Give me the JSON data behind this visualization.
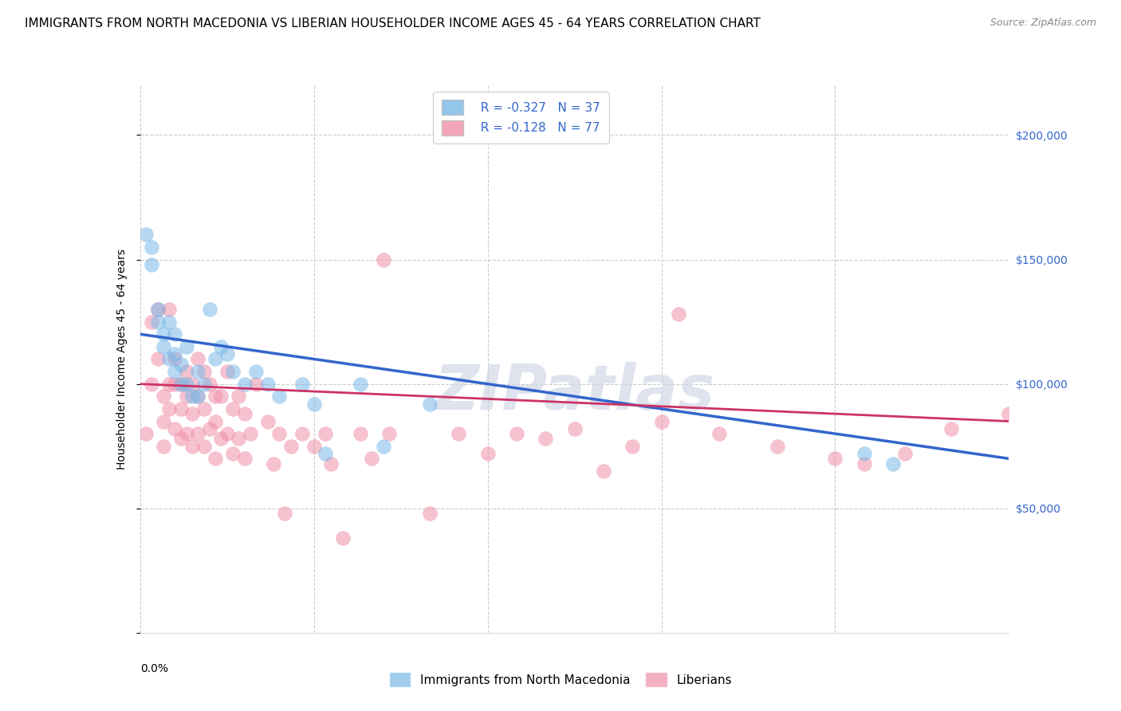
{
  "title": "IMMIGRANTS FROM NORTH MACEDONIA VS LIBERIAN HOUSEHOLDER INCOME AGES 45 - 64 YEARS CORRELATION CHART",
  "source": "Source: ZipAtlas.com",
  "ylabel": "Householder Income Ages 45 - 64 years",
  "xlim": [
    0.0,
    0.15
  ],
  "ylim": [
    0,
    220000
  ],
  "yticks": [
    0,
    50000,
    100000,
    150000,
    200000
  ],
  "xticks": [
    0.0,
    0.03,
    0.06,
    0.09,
    0.12,
    0.15
  ],
  "series1_label": "Immigrants from North Macedonia",
  "series2_label": "Liberians",
  "series1_color": "#7ab8e8",
  "series2_color": "#f090a8",
  "line1_color": "#3366cc",
  "line2_color": "#cc3366",
  "watermark": "ZIPatlas",
  "background_color": "#ffffff",
  "grid_color": "#cccccc",
  "title_fontsize": 11,
  "source_fontsize": 9,
  "legend_r1": "R = -0.327",
  "legend_n1": "N = 37",
  "legend_r2": "R = -0.128",
  "legend_n2": "N = 77",
  "series1_x": [
    0.001,
    0.002,
    0.002,
    0.003,
    0.003,
    0.004,
    0.004,
    0.005,
    0.005,
    0.006,
    0.006,
    0.006,
    0.007,
    0.007,
    0.008,
    0.008,
    0.009,
    0.01,
    0.01,
    0.011,
    0.012,
    0.013,
    0.014,
    0.015,
    0.016,
    0.018,
    0.02,
    0.022,
    0.024,
    0.028,
    0.03,
    0.032,
    0.038,
    0.042,
    0.05,
    0.125,
    0.13
  ],
  "series1_y": [
    160000,
    155000,
    148000,
    130000,
    125000,
    120000,
    115000,
    125000,
    110000,
    120000,
    112000,
    105000,
    108000,
    100000,
    115000,
    100000,
    95000,
    105000,
    95000,
    100000,
    130000,
    110000,
    115000,
    112000,
    105000,
    100000,
    105000,
    100000,
    95000,
    100000,
    92000,
    72000,
    100000,
    75000,
    92000,
    72000,
    68000
  ],
  "series2_x": [
    0.001,
    0.002,
    0.002,
    0.003,
    0.003,
    0.004,
    0.004,
    0.004,
    0.005,
    0.005,
    0.005,
    0.006,
    0.006,
    0.006,
    0.007,
    0.007,
    0.007,
    0.008,
    0.008,
    0.008,
    0.009,
    0.009,
    0.009,
    0.01,
    0.01,
    0.01,
    0.011,
    0.011,
    0.011,
    0.012,
    0.012,
    0.013,
    0.013,
    0.013,
    0.014,
    0.014,
    0.015,
    0.015,
    0.016,
    0.016,
    0.017,
    0.017,
    0.018,
    0.018,
    0.019,
    0.02,
    0.022,
    0.023,
    0.024,
    0.025,
    0.026,
    0.028,
    0.03,
    0.032,
    0.033,
    0.035,
    0.038,
    0.04,
    0.043,
    0.05,
    0.055,
    0.06,
    0.065,
    0.07,
    0.075,
    0.08,
    0.085,
    0.09,
    0.093,
    0.1,
    0.11,
    0.12,
    0.125,
    0.132,
    0.14,
    0.042,
    0.15
  ],
  "series2_y": [
    80000,
    100000,
    125000,
    130000,
    110000,
    95000,
    85000,
    75000,
    130000,
    100000,
    90000,
    110000,
    100000,
    82000,
    100000,
    90000,
    78000,
    105000,
    95000,
    80000,
    100000,
    88000,
    75000,
    110000,
    95000,
    80000,
    105000,
    90000,
    75000,
    100000,
    82000,
    95000,
    85000,
    70000,
    95000,
    78000,
    105000,
    80000,
    90000,
    72000,
    95000,
    78000,
    88000,
    70000,
    80000,
    100000,
    85000,
    68000,
    80000,
    48000,
    75000,
    80000,
    75000,
    80000,
    68000,
    38000,
    80000,
    70000,
    80000,
    48000,
    80000,
    72000,
    80000,
    78000,
    82000,
    65000,
    75000,
    85000,
    128000,
    80000,
    75000,
    70000,
    68000,
    72000,
    82000,
    150000,
    88000
  ]
}
